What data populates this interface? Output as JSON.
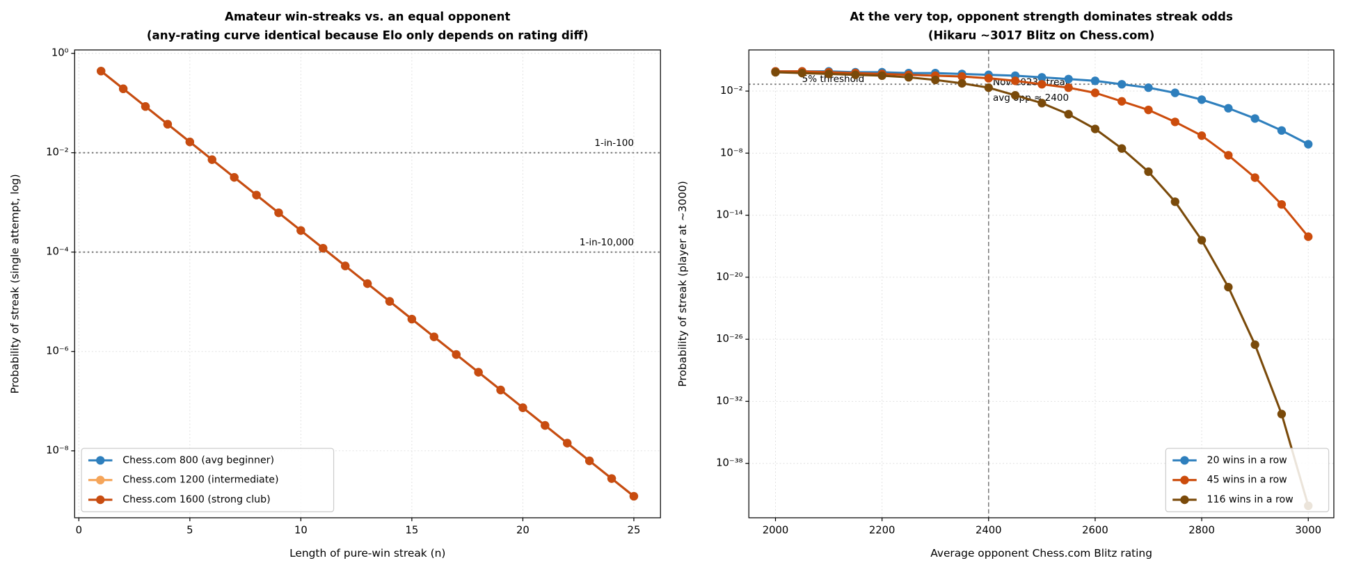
{
  "chart_data": [
    {
      "type": "line",
      "title": [
        "Amateur win-streaks vs. an equal opponent",
        "(any-rating curve identical because Elo only depends on rating diff)"
      ],
      "x_label": "Length of pure-win streak (n)",
      "y_label": "Probability of streak (single attempt, log)",
      "yscale": "log",
      "grid": true,
      "legend": "lower left",
      "xlim": [
        -0.19,
        26.2
      ],
      "xticks": [
        0,
        5,
        10,
        15,
        20,
        25
      ],
      "ylim": [
        4.5e-10,
        1.17
      ],
      "yticks": [
        {
          "value": 1,
          "label": "10⁰"
        },
        {
          "value": 0.01,
          "label": "10⁻²"
        },
        {
          "value": 0.0001,
          "label": "10⁻⁴"
        },
        {
          "value": 1e-06,
          "label": "10⁻⁶"
        },
        {
          "value": 1e-08,
          "label": "10⁻⁸"
        }
      ],
      "hlines": [
        {
          "value": 0.01,
          "label": "1-in-100"
        },
        {
          "value": 0.0001,
          "label": "1-in-10,000"
        }
      ],
      "x": [
        1,
        2,
        3,
        4,
        5,
        6,
        7,
        8,
        9,
        10,
        11,
        12,
        13,
        14,
        15,
        16,
        17,
        18,
        19,
        20,
        21,
        22,
        23,
        24,
        25
      ],
      "series": [
        {
          "name": "Chess.com 800 (avg beginner)",
          "color": "#2e7fbd",
          "values": [
            0.44,
            0.1936,
            0.08518,
            0.03748,
            0.01649,
            0.007256,
            0.003193,
            0.001405,
            0.000618,
            0.000272,
            0.0001197,
            5.27e-05,
            2.32e-05,
            1.02e-05,
            4.48e-06,
            1.97e-06,
            8.68e-07,
            3.82e-07,
            1.68e-07,
            7.39e-08,
            3.25e-08,
            1.43e-08,
            6.3e-09,
            2.77e-09,
            1.22e-09
          ]
        },
        {
          "name": "Chess.com 1200 (intermediate)",
          "color": "#f5a55a",
          "values": [
            0.44,
            0.1936,
            0.08518,
            0.03748,
            0.01649,
            0.007256,
            0.003193,
            0.001405,
            0.000618,
            0.000272,
            0.0001197,
            5.27e-05,
            2.32e-05,
            1.02e-05,
            4.48e-06,
            1.97e-06,
            8.68e-07,
            3.82e-07,
            1.68e-07,
            7.39e-08,
            3.25e-08,
            1.43e-08,
            6.3e-09,
            2.77e-09,
            1.22e-09
          ]
        },
        {
          "name": "Chess.com 1600 (strong club)",
          "color": "#c84c10",
          "values": [
            0.44,
            0.1936,
            0.08518,
            0.03748,
            0.01649,
            0.007256,
            0.003193,
            0.001405,
            0.000618,
            0.000272,
            0.0001197,
            5.27e-05,
            2.32e-05,
            1.02e-05,
            4.48e-06,
            1.97e-06,
            8.68e-07,
            3.82e-07,
            1.68e-07,
            7.39e-08,
            3.25e-08,
            1.43e-08,
            6.3e-09,
            2.77e-09,
            1.22e-09
          ]
        }
      ]
    },
    {
      "type": "line",
      "title": [
        "At the very top, opponent strength dominates streak odds",
        "(Hikaru ~3017 Blitz on Chess.com)"
      ],
      "x_label": "Average opponent Chess.com Blitz rating",
      "y_label": "Probability of streak (player at ~3000)",
      "yscale": "log",
      "grid": true,
      "legend": "lower right",
      "xlim": [
        1950,
        3048
      ],
      "xticks": [
        2000,
        2200,
        2400,
        2600,
        2800,
        3000
      ],
      "ylim": [
        5.5e-44,
        95
      ],
      "yticks": [
        {
          "value": 0.01,
          "label": "10⁻²"
        },
        {
          "value": 1e-08,
          "label": "10⁻⁸"
        },
        {
          "value": 1e-14,
          "label": "10⁻¹⁴"
        },
        {
          "value": 1e-20,
          "label": "10⁻²⁰"
        },
        {
          "value": 1e-26,
          "label": "10⁻²⁶"
        },
        {
          "value": 1e-32,
          "label": "10⁻³²"
        },
        {
          "value": 1e-38,
          "label": "10⁻³⁸"
        }
      ],
      "hlines": [
        {
          "value": 0.046,
          "label": "5% threshold"
        }
      ],
      "vlines": [
        {
          "value": 2400,
          "label": [
            "Nov 2023 streak",
            "avg opp ≈ 2400"
          ]
        }
      ],
      "x": [
        2000,
        2050,
        2100,
        2150,
        2200,
        2250,
        2300,
        2350,
        2400,
        2450,
        2500,
        2550,
        2600,
        2650,
        2700,
        2750,
        2800,
        2850,
        2900,
        2950,
        3000
      ],
      "series": [
        {
          "name": "20 wins in a row",
          "color": "#2e7fbd",
          "values": [
            0.804,
            0.804,
            0.804,
            0.661,
            0.661,
            0.55,
            0.55,
            0.457,
            0.372,
            0.309,
            0.214,
            0.145,
            0.0977,
            0.0457,
            0.0214,
            0.00676,
            0.00148,
            0.000219,
            2.24e-05,
            1.55e-06,
            7.24e-08
          ]
        },
        {
          "name": "45 wins in a row",
          "color": "#cc4c0c",
          "values": [
            0.804,
            0.804,
            0.661,
            0.55,
            0.457,
            0.372,
            0.309,
            0.257,
            0.174,
            0.0977,
            0.0457,
            0.0214,
            0.00676,
            0.00102,
            0.000151,
            1.05e-05,
            4.9e-07,
            6.2e-09,
            4.3e-11,
            1.1e-13,
            8.3e-17
          ]
        },
        {
          "name": "116 wins in a row",
          "color": "#7a4a0a",
          "values": [
            0.661,
            0.55,
            0.457,
            0.372,
            0.309,
            0.214,
            0.12,
            0.0562,
            0.0214,
            0.0039,
            0.00069,
            5.8e-05,
            2.2e-06,
            2.8e-08,
            1.6e-10,
            2e-13,
            3.8e-17,
            1.1e-21,
            3e-27,
            5.9e-34,
            7.9e-43
          ]
        }
      ]
    }
  ]
}
